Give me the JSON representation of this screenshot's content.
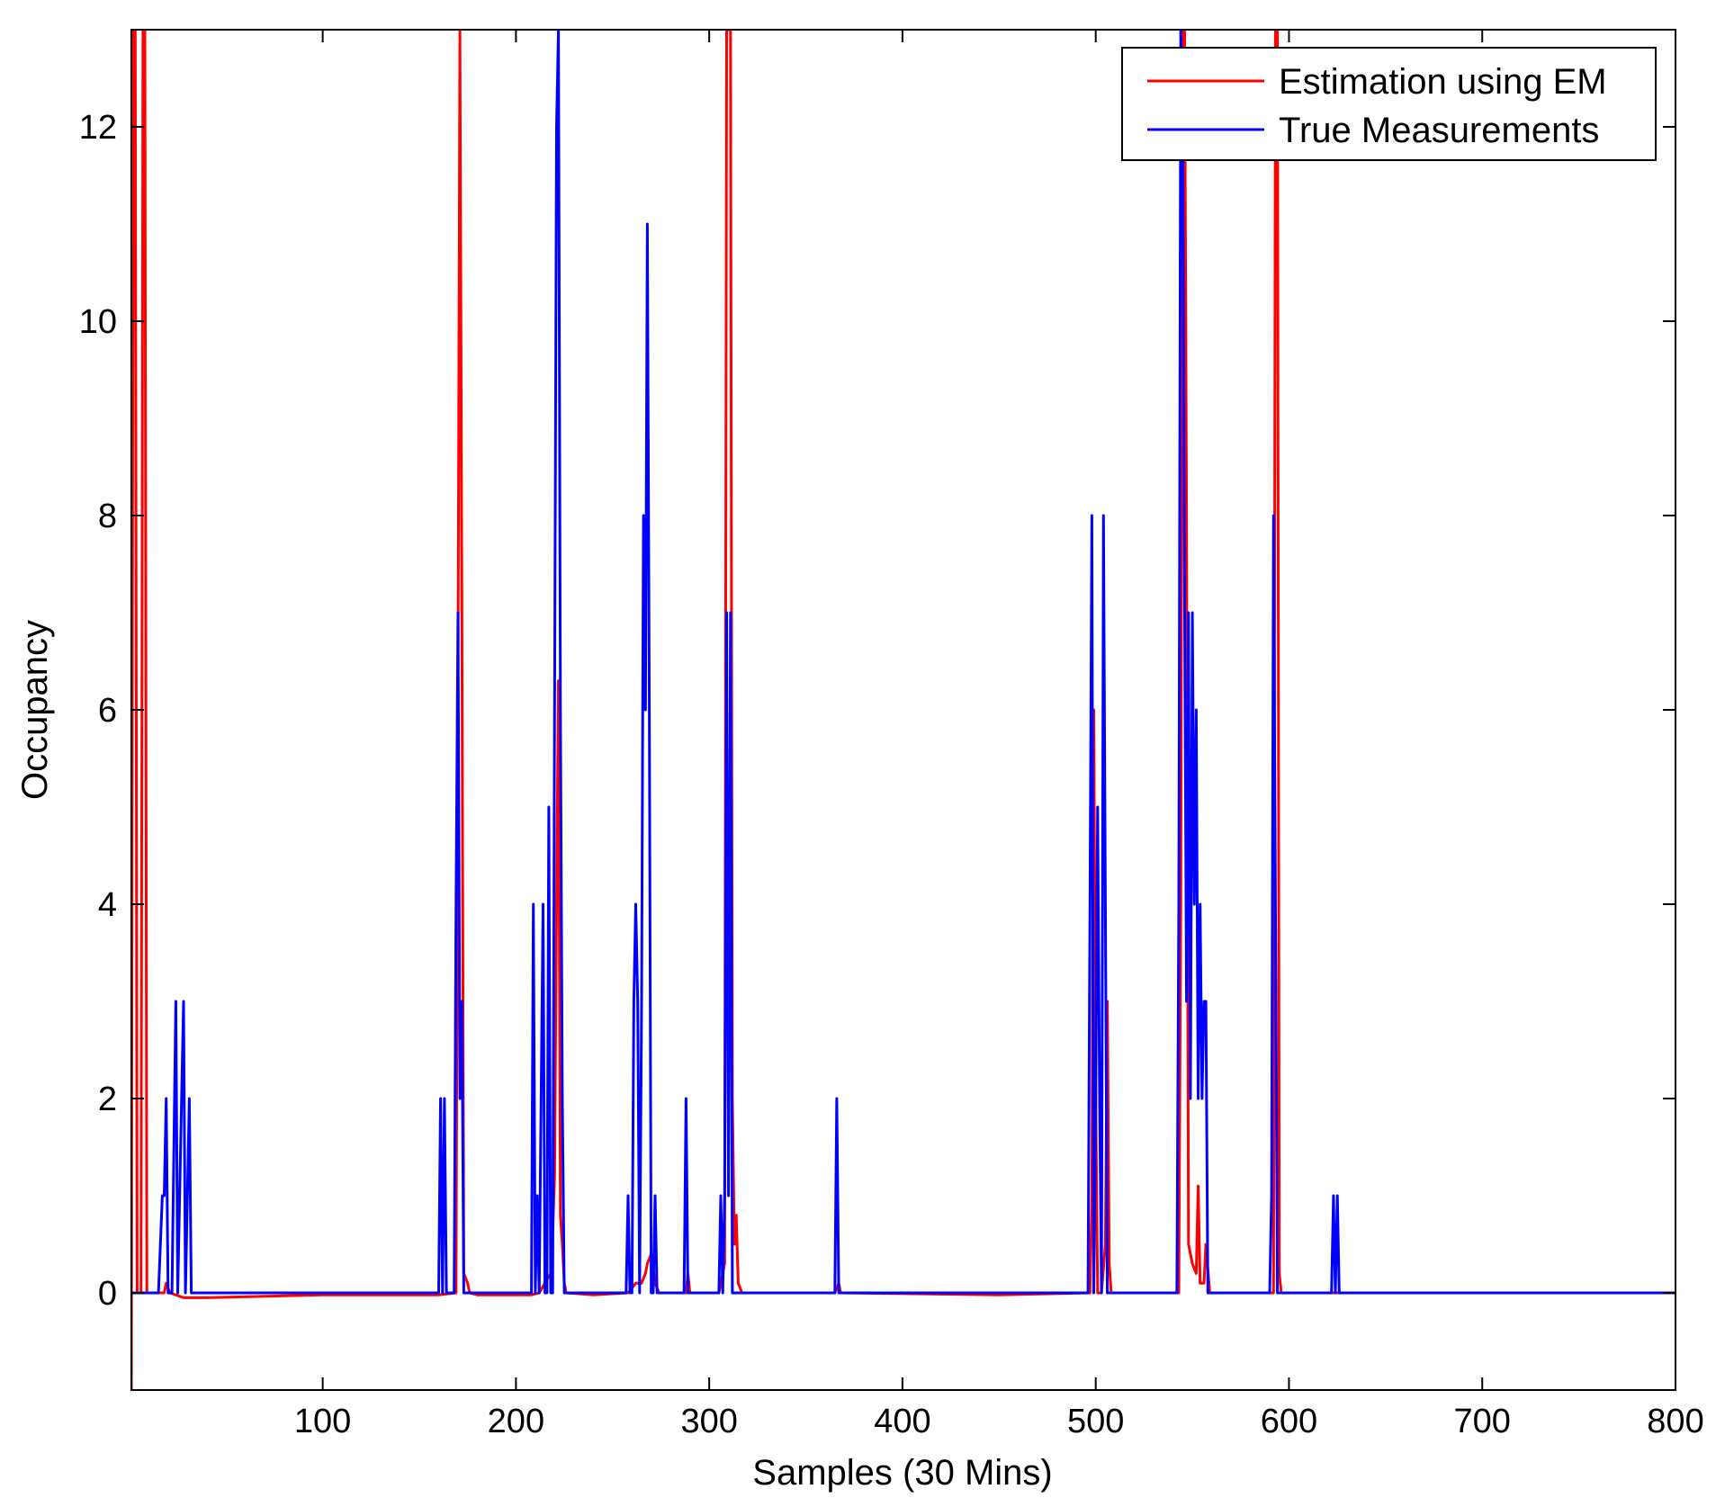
{
  "chart_data": {
    "type": "line",
    "title": "",
    "xlabel": "Samples (30 Mins)",
    "ylabel": "Occupancy",
    "xlim": [
      1,
      800
    ],
    "ylim": [
      -1,
      13
    ],
    "xticks": [
      100,
      200,
      300,
      400,
      500,
      600,
      700,
      800
    ],
    "yticks": [
      0,
      2,
      4,
      6,
      8,
      10,
      12
    ],
    "grid": false,
    "legend_position": "top-right",
    "series": [
      {
        "name": "Estimation using EM",
        "color": "#ff0000",
        "points": [
          [
            1,
            -1
          ],
          [
            2,
            13
          ],
          [
            3,
            13
          ],
          [
            4,
            0
          ],
          [
            6,
            0
          ],
          [
            7,
            13
          ],
          [
            8,
            13
          ],
          [
            9,
            0
          ],
          [
            18,
            0
          ],
          [
            19,
            0.1
          ],
          [
            20,
            0.05
          ],
          [
            21,
            0
          ],
          [
            28,
            -0.05
          ],
          [
            40,
            -0.05
          ],
          [
            100,
            -0.02
          ],
          [
            160,
            -0.02
          ],
          [
            169,
            0
          ],
          [
            170,
            6.5
          ],
          [
            171,
            13
          ],
          [
            172,
            7
          ],
          [
            173,
            0.2
          ],
          [
            175,
            0.1
          ],
          [
            176,
            0
          ],
          [
            180,
            -0.02
          ],
          [
            208,
            -0.02
          ],
          [
            212,
            0
          ],
          [
            218,
            0.2
          ],
          [
            219,
            0.6
          ],
          [
            220,
            1.2
          ],
          [
            221,
            4
          ],
          [
            222,
            6.3
          ],
          [
            223,
            0.8
          ],
          [
            224,
            0.5
          ],
          [
            225,
            0.1
          ],
          [
            226,
            0
          ],
          [
            240,
            -0.02
          ],
          [
            258,
            0
          ],
          [
            262,
            0.1
          ],
          [
            265,
            0.1
          ],
          [
            267,
            0.2
          ],
          [
            268,
            0.3
          ],
          [
            270,
            0.4
          ],
          [
            272,
            0.1
          ],
          [
            274,
            0
          ],
          [
            288,
            0
          ],
          [
            289,
            0.2
          ],
          [
            290,
            0
          ],
          [
            305,
            0
          ],
          [
            308,
            0.3
          ],
          [
            309,
            13
          ],
          [
            311,
            13
          ],
          [
            312,
            2
          ],
          [
            313,
            0.5
          ],
          [
            314,
            0.8
          ],
          [
            315,
            0.1
          ],
          [
            317,
            0
          ],
          [
            365,
            0
          ],
          [
            367,
            0.1
          ],
          [
            368,
            0
          ],
          [
            450,
            -0.02
          ],
          [
            497,
            0
          ],
          [
            498,
            1
          ],
          [
            499,
            6
          ],
          [
            500,
            2
          ],
          [
            501,
            0
          ],
          [
            503,
            0
          ],
          [
            505,
            0.5
          ],
          [
            506,
            3
          ],
          [
            507,
            0.3
          ],
          [
            508,
            0
          ],
          [
            543,
            0
          ],
          [
            544,
            4
          ],
          [
            545,
            13
          ],
          [
            546,
            13
          ],
          [
            547,
            8
          ],
          [
            548,
            0.5
          ],
          [
            550,
            0.3
          ],
          [
            552,
            0.2
          ],
          [
            553,
            1.1
          ],
          [
            554,
            0.1
          ],
          [
            556,
            0.1
          ],
          [
            557,
            0.5
          ],
          [
            559,
            0
          ],
          [
            564,
            0
          ],
          [
            592,
            0
          ],
          [
            593,
            13
          ],
          [
            594,
            13
          ],
          [
            595,
            0.2
          ],
          [
            596,
            0
          ],
          [
            623,
            0
          ],
          [
            700,
            0
          ],
          [
            800,
            0
          ]
        ]
      },
      {
        "name": "True Measurements",
        "color": "#0000ff",
        "points": [
          [
            1,
            0
          ],
          [
            15,
            0
          ],
          [
            17,
            1
          ],
          [
            18,
            1
          ],
          [
            19,
            2
          ],
          [
            20,
            0
          ],
          [
            22,
            0
          ],
          [
            24,
            3
          ],
          [
            25,
            0
          ],
          [
            27,
            2
          ],
          [
            28,
            3
          ],
          [
            29,
            0
          ],
          [
            31,
            2
          ],
          [
            32,
            0
          ],
          [
            34,
            0
          ],
          [
            160,
            0
          ],
          [
            161,
            2
          ],
          [
            162,
            0
          ],
          [
            163,
            2
          ],
          [
            164,
            0
          ],
          [
            168,
            0
          ],
          [
            169,
            4
          ],
          [
            170,
            7
          ],
          [
            171,
            2
          ],
          [
            172,
            3
          ],
          [
            173,
            0
          ],
          [
            175,
            0
          ],
          [
            208,
            0
          ],
          [
            209,
            4
          ],
          [
            210,
            0
          ],
          [
            211,
            1
          ],
          [
            212,
            0
          ],
          [
            214,
            4
          ],
          [
            215,
            0
          ],
          [
            216,
            0
          ],
          [
            217,
            5
          ],
          [
            218,
            0
          ],
          [
            219,
            0
          ],
          [
            220,
            6
          ],
          [
            221,
            12
          ],
          [
            222,
            13
          ],
          [
            223,
            6
          ],
          [
            224,
            2
          ],
          [
            225,
            0
          ],
          [
            257,
            0
          ],
          [
            258,
            1
          ],
          [
            259,
            0
          ],
          [
            260,
            0
          ],
          [
            261,
            3
          ],
          [
            262,
            4
          ],
          [
            263,
            3
          ],
          [
            264,
            0
          ],
          [
            265,
            3
          ],
          [
            266,
            8
          ],
          [
            267,
            6
          ],
          [
            268,
            11
          ],
          [
            269,
            6
          ],
          [
            270,
            0
          ],
          [
            271,
            0
          ],
          [
            272,
            1
          ],
          [
            273,
            0
          ],
          [
            287,
            0
          ],
          [
            288,
            2
          ],
          [
            289,
            0
          ],
          [
            305,
            0
          ],
          [
            306,
            1
          ],
          [
            307,
            0
          ],
          [
            308,
            1
          ],
          [
            309,
            7
          ],
          [
            310,
            1
          ],
          [
            311,
            7
          ],
          [
            312,
            0
          ],
          [
            314,
            0
          ],
          [
            365,
            0
          ],
          [
            366,
            2
          ],
          [
            367,
            0
          ],
          [
            496,
            0
          ],
          [
            497,
            4
          ],
          [
            498,
            8
          ],
          [
            499,
            0
          ],
          [
            500,
            2
          ],
          [
            501,
            5
          ],
          [
            502,
            2
          ],
          [
            503,
            0
          ],
          [
            504,
            8
          ],
          [
            505,
            4
          ],
          [
            506,
            0
          ],
          [
            542,
            0
          ],
          [
            543,
            4
          ],
          [
            544,
            13
          ],
          [
            545,
            12
          ],
          [
            546,
            7
          ],
          [
            547,
            3
          ],
          [
            548,
            7
          ],
          [
            549,
            2
          ],
          [
            550,
            7
          ],
          [
            551,
            4
          ],
          [
            552,
            6
          ],
          [
            553,
            2
          ],
          [
            554,
            4
          ],
          [
            555,
            2
          ],
          [
            556,
            3
          ],
          [
            557,
            3
          ],
          [
            558,
            0
          ],
          [
            560,
            0
          ],
          [
            590,
            0
          ],
          [
            591,
            1
          ],
          [
            592,
            8
          ],
          [
            593,
            4
          ],
          [
            594,
            0
          ],
          [
            622,
            0
          ],
          [
            623,
            1
          ],
          [
            624,
            0
          ],
          [
            625,
            1
          ],
          [
            626,
            0
          ],
          [
            700,
            0
          ],
          [
            800,
            0
          ]
        ]
      }
    ]
  }
}
